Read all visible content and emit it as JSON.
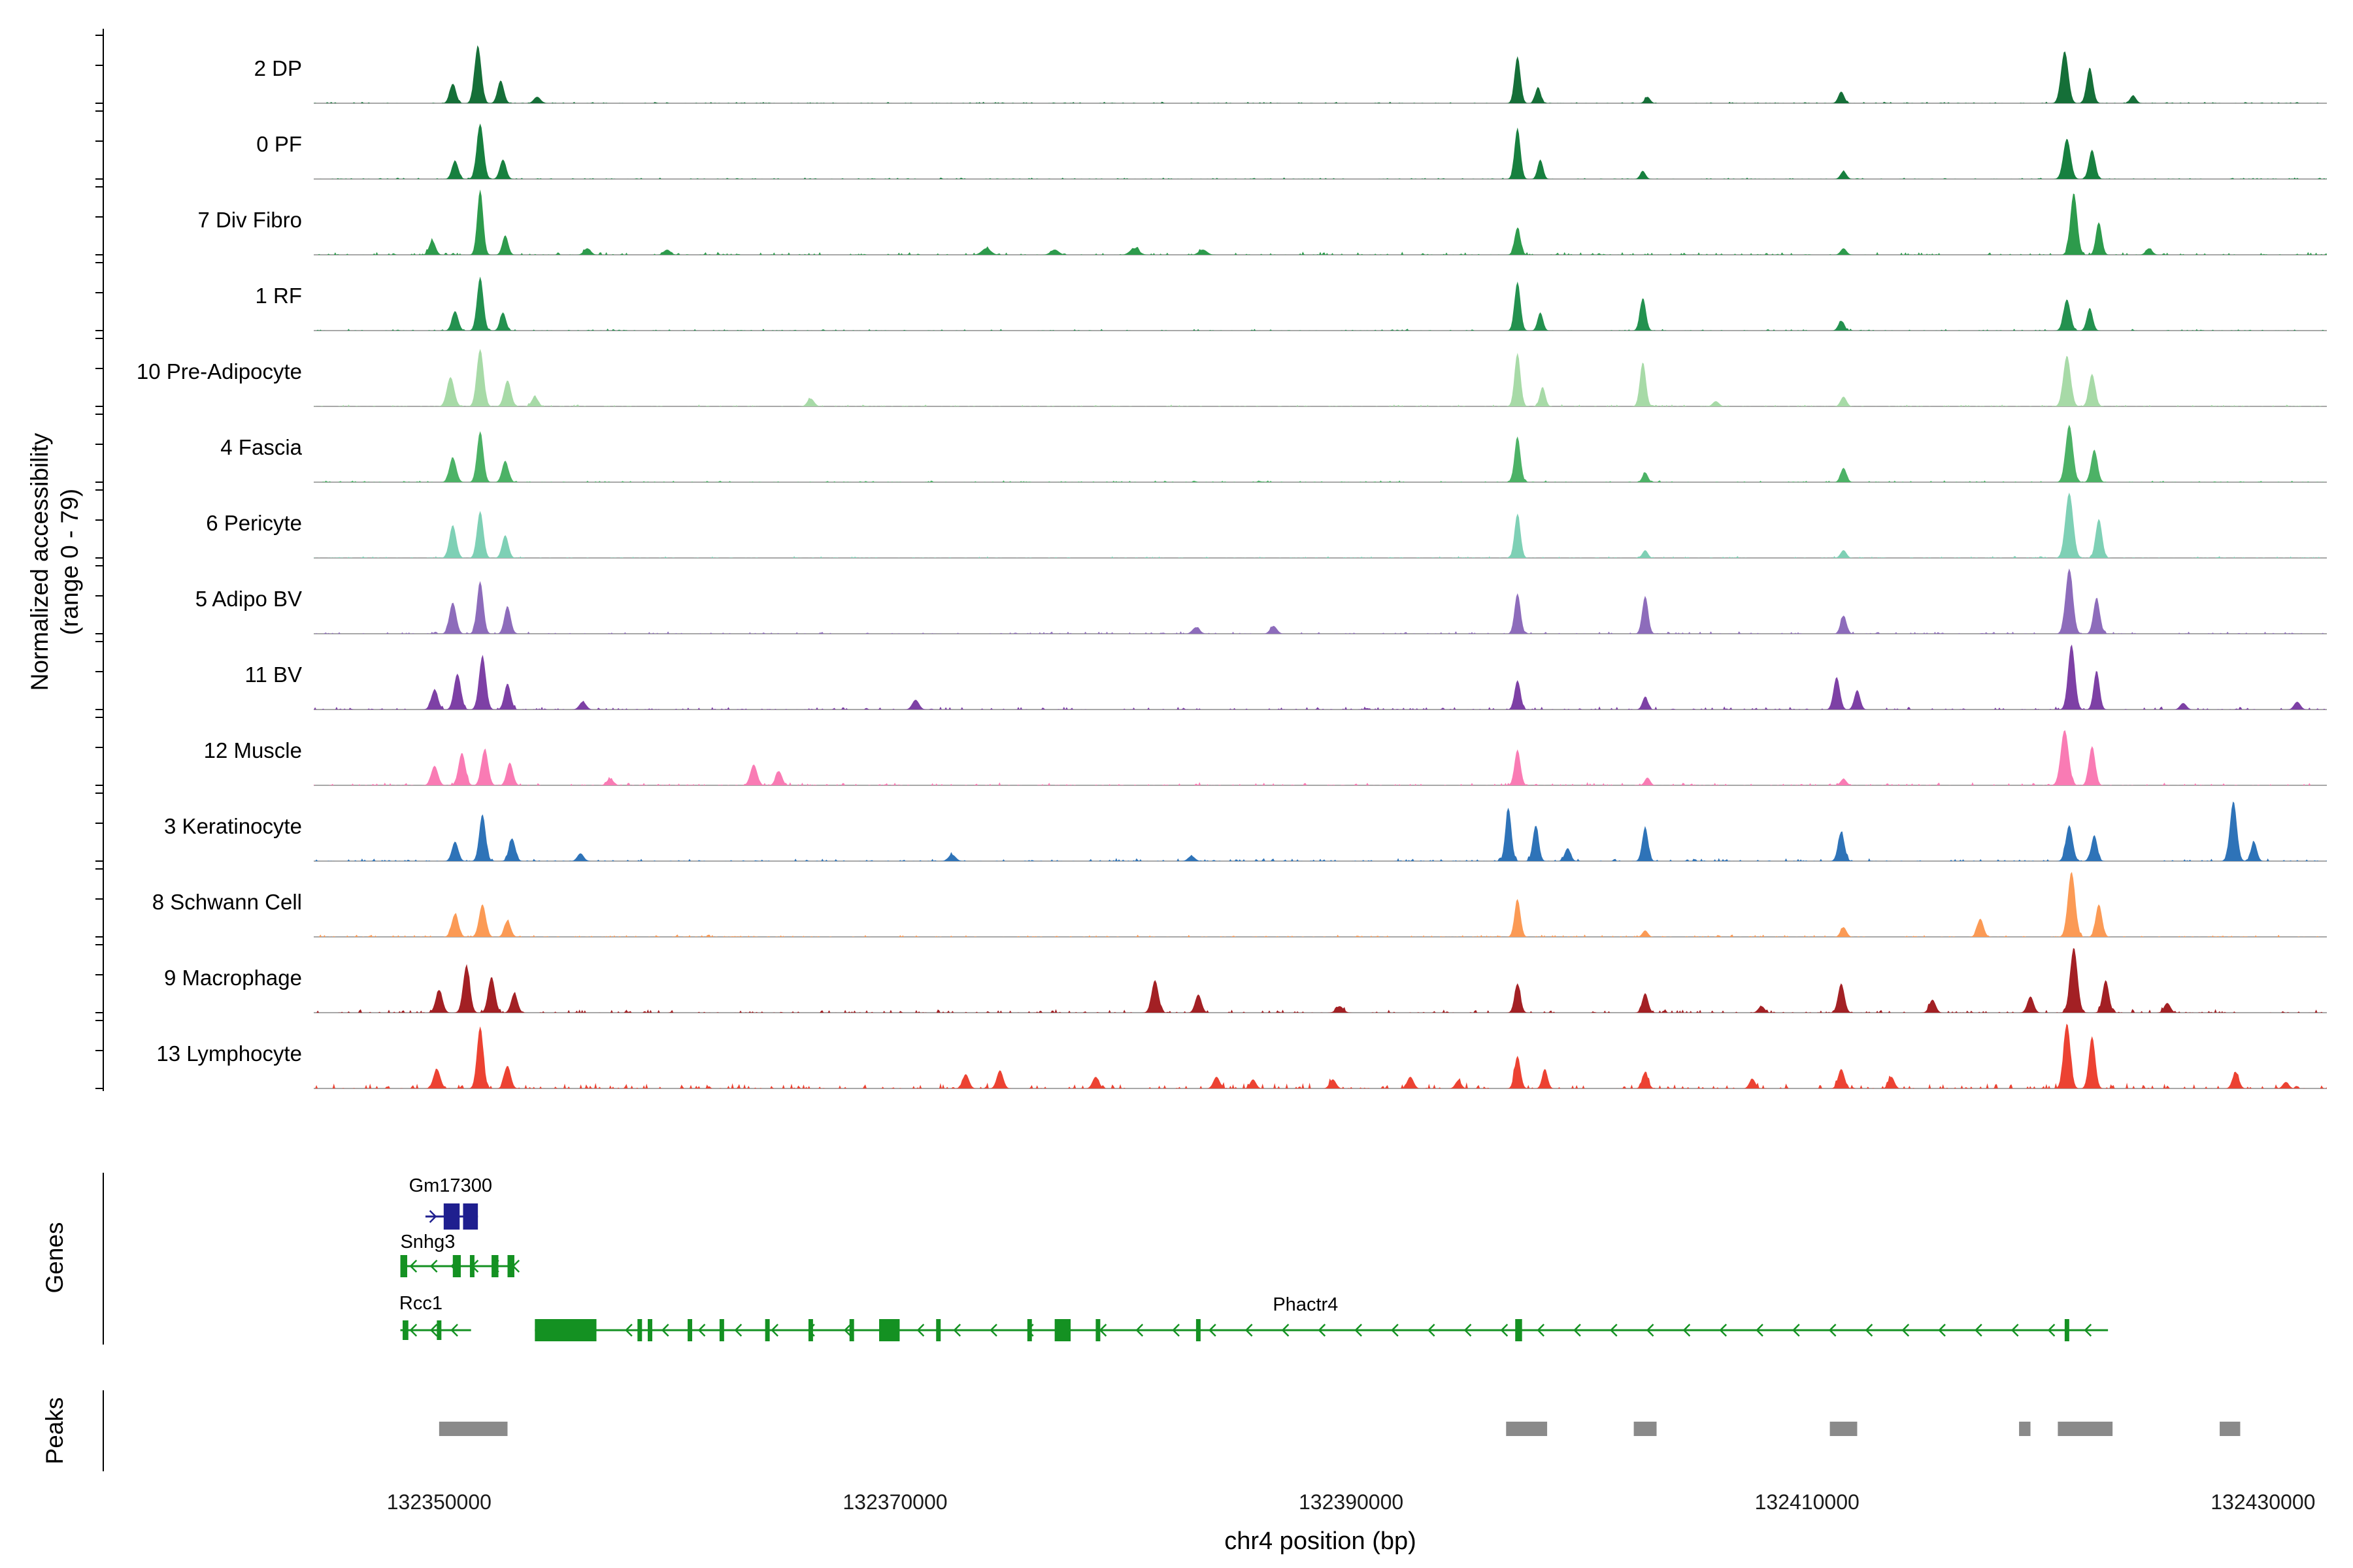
{
  "chart_data": {
    "type": "area",
    "subtype": "genome-accessibility-tracks",
    "x_domain": [
      132344500,
      132432800
    ],
    "x_axis": {
      "title": "chr4 position (bp)",
      "ticks": [
        132350000,
        132370000,
        132390000,
        132410000,
        132430000
      ]
    },
    "y_axis": {
      "label_line1": "Normalized accessibility",
      "label_line2": "(range 0 - 79)",
      "range": [
        0,
        79
      ]
    },
    "sections": {
      "genes_label": "Genes",
      "peaks_label": "Peaks"
    },
    "tracks": [
      {
        "name": "2 DP",
        "color": "#156f38",
        "noise": 0.025,
        "peaks": [
          [
            132350600,
            0.3,
            140
          ],
          [
            132351700,
            0.88,
            150
          ],
          [
            132352700,
            0.35,
            140
          ],
          [
            132354300,
            0.1,
            150
          ],
          [
            132397300,
            0.72,
            130
          ],
          [
            132398200,
            0.25,
            120
          ],
          [
            132403000,
            0.1,
            120
          ],
          [
            132411500,
            0.18,
            130
          ],
          [
            132421300,
            0.8,
            160
          ],
          [
            132422400,
            0.55,
            140
          ],
          [
            132424300,
            0.12,
            130
          ]
        ]
      },
      {
        "name": "0 PF",
        "color": "#17803f",
        "noise": 0.025,
        "peaks": [
          [
            132350700,
            0.28,
            140
          ],
          [
            132351800,
            0.85,
            150
          ],
          [
            132352800,
            0.3,
            140
          ],
          [
            132397300,
            0.78,
            130
          ],
          [
            132398300,
            0.3,
            120
          ],
          [
            132402800,
            0.12,
            120
          ],
          [
            132411600,
            0.12,
            130
          ],
          [
            132421400,
            0.62,
            160
          ],
          [
            132422500,
            0.45,
            140
          ]
        ]
      },
      {
        "name": "7 Div Fibro",
        "color": "#2d9b4c",
        "noise": 0.05,
        "peaks": [
          [
            132349700,
            0.22,
            140
          ],
          [
            132351800,
            1.0,
            130
          ],
          [
            132352900,
            0.3,
            130
          ],
          [
            132356500,
            0.1,
            150
          ],
          [
            132360000,
            0.08,
            150
          ],
          [
            132374000,
            0.1,
            200
          ],
          [
            132377000,
            0.08,
            180
          ],
          [
            132380500,
            0.1,
            200
          ],
          [
            132383500,
            0.08,
            180
          ],
          [
            132397300,
            0.42,
            130
          ],
          [
            132411600,
            0.1,
            130
          ],
          [
            132421700,
            0.95,
            150
          ],
          [
            132422800,
            0.5,
            130
          ],
          [
            132425000,
            0.1,
            140
          ]
        ]
      },
      {
        "name": "1 RF",
        "color": "#23914f",
        "noise": 0.03,
        "peaks": [
          [
            132350700,
            0.3,
            140
          ],
          [
            132351800,
            0.82,
            140
          ],
          [
            132352800,
            0.28,
            130
          ],
          [
            132397300,
            0.75,
            130
          ],
          [
            132398300,
            0.28,
            120
          ],
          [
            132402800,
            0.5,
            130
          ],
          [
            132411500,
            0.15,
            130
          ],
          [
            132421400,
            0.48,
            150
          ],
          [
            132422400,
            0.35,
            130
          ]
        ]
      },
      {
        "name": "10 Pre-Adipocyte",
        "color": "#a7daa7",
        "noise": 0.035,
        "peaks": [
          [
            132350500,
            0.45,
            160
          ],
          [
            132351800,
            0.88,
            150
          ],
          [
            132353000,
            0.4,
            150
          ],
          [
            132354200,
            0.15,
            140
          ],
          [
            132366300,
            0.12,
            150
          ],
          [
            132397300,
            0.82,
            130
          ],
          [
            132398400,
            0.3,
            120
          ],
          [
            132402800,
            0.68,
            130
          ],
          [
            132406000,
            0.08,
            140
          ],
          [
            132411600,
            0.15,
            130
          ],
          [
            132421400,
            0.78,
            160
          ],
          [
            132422500,
            0.5,
            140
          ]
        ]
      },
      {
        "name": "4 Fascia",
        "color": "#4cb266",
        "noise": 0.03,
        "peaks": [
          [
            132350600,
            0.38,
            150
          ],
          [
            132351800,
            0.78,
            140
          ],
          [
            132352900,
            0.33,
            140
          ],
          [
            132397300,
            0.7,
            130
          ],
          [
            132402900,
            0.15,
            120
          ],
          [
            132411600,
            0.22,
            130
          ],
          [
            132421500,
            0.88,
            160
          ],
          [
            132422600,
            0.5,
            140
          ]
        ]
      },
      {
        "name": "6 Pericyte",
        "color": "#7ed0b5",
        "noise": 0.03,
        "peaks": [
          [
            132350600,
            0.5,
            150
          ],
          [
            132351800,
            0.72,
            140
          ],
          [
            132352900,
            0.35,
            140
          ],
          [
            132397300,
            0.68,
            130
          ],
          [
            132402900,
            0.12,
            120
          ],
          [
            132411600,
            0.12,
            130
          ],
          [
            132421500,
            1.0,
            170
          ],
          [
            132422800,
            0.6,
            140
          ]
        ]
      },
      {
        "name": "5 Adipo BV",
        "color": "#8d6cbb",
        "noise": 0.04,
        "peaks": [
          [
            132350600,
            0.48,
            150
          ],
          [
            132351800,
            0.8,
            140
          ],
          [
            132353000,
            0.42,
            140
          ],
          [
            132383200,
            0.1,
            160
          ],
          [
            132386600,
            0.12,
            150
          ],
          [
            132397300,
            0.62,
            130
          ],
          [
            132402900,
            0.58,
            130
          ],
          [
            132411600,
            0.28,
            130
          ],
          [
            132421500,
            1.0,
            160
          ],
          [
            132422700,
            0.55,
            140
          ]
        ]
      },
      {
        "name": "11 BV",
        "color": "#7d40a5",
        "noise": 0.05,
        "peaks": [
          [
            132349800,
            0.3,
            150
          ],
          [
            132350800,
            0.55,
            150
          ],
          [
            132351900,
            0.82,
            150
          ],
          [
            132353000,
            0.4,
            140
          ],
          [
            132356300,
            0.12,
            150
          ],
          [
            132370900,
            0.15,
            150
          ],
          [
            132397300,
            0.45,
            130
          ],
          [
            132402900,
            0.2,
            120
          ],
          [
            132411300,
            0.5,
            140
          ],
          [
            132412200,
            0.3,
            130
          ],
          [
            132421600,
            1.0,
            150
          ],
          [
            132422700,
            0.6,
            130
          ],
          [
            132426500,
            0.1,
            140
          ],
          [
            132431500,
            0.12,
            140
          ]
        ]
      },
      {
        "name": "12 Muscle",
        "color": "#f97bb4",
        "noise": 0.05,
        "peaks": [
          [
            132349800,
            0.3,
            150
          ],
          [
            132351000,
            0.5,
            150
          ],
          [
            132352000,
            0.55,
            150
          ],
          [
            132353100,
            0.35,
            140
          ],
          [
            132357500,
            0.1,
            150
          ],
          [
            132363800,
            0.32,
            150
          ],
          [
            132364900,
            0.22,
            140
          ],
          [
            132397300,
            0.55,
            130
          ],
          [
            132403000,
            0.12,
            120
          ],
          [
            132411600,
            0.1,
            130
          ],
          [
            132421300,
            0.85,
            170
          ],
          [
            132422500,
            0.6,
            140
          ]
        ]
      },
      {
        "name": "3 Keratinocyte",
        "color": "#2e73b8",
        "noise": 0.05,
        "peaks": [
          [
            132350700,
            0.3,
            140
          ],
          [
            132351900,
            0.72,
            140
          ],
          [
            132353200,
            0.35,
            140
          ],
          [
            132356200,
            0.12,
            140
          ],
          [
            132372500,
            0.1,
            160
          ],
          [
            132383000,
            0.08,
            150
          ],
          [
            132396900,
            0.82,
            130
          ],
          [
            132398100,
            0.55,
            130
          ],
          [
            132399500,
            0.2,
            130
          ],
          [
            132402900,
            0.52,
            130
          ],
          [
            132411500,
            0.45,
            140
          ],
          [
            132421500,
            0.55,
            150
          ],
          [
            132422600,
            0.4,
            130
          ],
          [
            132428700,
            0.92,
            150
          ],
          [
            132429600,
            0.3,
            130
          ]
        ]
      },
      {
        "name": "8 Schwann Cell",
        "color": "#fb9a55",
        "noise": 0.04,
        "peaks": [
          [
            132350700,
            0.35,
            150
          ],
          [
            132351900,
            0.5,
            150
          ],
          [
            132353000,
            0.25,
            140
          ],
          [
            132397300,
            0.58,
            130
          ],
          [
            132402900,
            0.1,
            120
          ],
          [
            132411600,
            0.15,
            130
          ],
          [
            132417600,
            0.28,
            140
          ],
          [
            132421600,
            1.0,
            160
          ],
          [
            132422800,
            0.5,
            140
          ]
        ]
      },
      {
        "name": "9 Macrophage",
        "color": "#a32024",
        "noise": 0.06,
        "peaks": [
          [
            132350000,
            0.35,
            150
          ],
          [
            132351200,
            0.72,
            150
          ],
          [
            132352300,
            0.55,
            150
          ],
          [
            132353300,
            0.3,
            140
          ],
          [
            132381400,
            0.5,
            150
          ],
          [
            132383300,
            0.28,
            140
          ],
          [
            132389500,
            0.1,
            160
          ],
          [
            132397300,
            0.45,
            130
          ],
          [
            132402900,
            0.3,
            130
          ],
          [
            132408000,
            0.1,
            140
          ],
          [
            132411500,
            0.45,
            140
          ],
          [
            132415500,
            0.2,
            140
          ],
          [
            132419800,
            0.25,
            140
          ],
          [
            132421700,
            1.0,
            160
          ],
          [
            132423100,
            0.5,
            140
          ],
          [
            132425800,
            0.15,
            140
          ]
        ]
      },
      {
        "name": "13 Lymphocyte",
        "color": "#ec4232",
        "noise": 0.1,
        "peaks": [
          [
            132349900,
            0.3,
            150
          ],
          [
            132351800,
            0.95,
            140
          ],
          [
            132353000,
            0.35,
            140
          ],
          [
            132373100,
            0.22,
            140
          ],
          [
            132374600,
            0.28,
            140
          ],
          [
            132378800,
            0.18,
            140
          ],
          [
            132384100,
            0.18,
            140
          ],
          [
            132385700,
            0.14,
            130
          ],
          [
            132389200,
            0.14,
            140
          ],
          [
            132392600,
            0.18,
            140
          ],
          [
            132394700,
            0.12,
            130
          ],
          [
            132397300,
            0.5,
            130
          ],
          [
            132398500,
            0.3,
            120
          ],
          [
            132402900,
            0.25,
            130
          ],
          [
            132407600,
            0.15,
            130
          ],
          [
            132411500,
            0.3,
            140
          ],
          [
            132413700,
            0.18,
            130
          ],
          [
            132421400,
            1.0,
            150
          ],
          [
            132422500,
            0.8,
            140
          ],
          [
            132428800,
            0.25,
            140
          ],
          [
            132431000,
            0.1,
            130
          ]
        ]
      }
    ],
    "genes": [
      {
        "name": "Gm17300",
        "color": "#1f1f8f",
        "strand": "+",
        "row": 0,
        "start": 132349400,
        "end": 132351700,
        "label_bp": 132350500,
        "label_dy": -38,
        "arrow_step": 900,
        "exon_h": 40,
        "exons": [
          [
            132350200,
            132350900
          ],
          [
            132351050,
            132351700
          ]
        ]
      },
      {
        "name": "Snhg3",
        "color": "#149122",
        "strand": "-",
        "row": 1,
        "start": 132348300,
        "end": 132353300,
        "label_bp": 132349500,
        "label_dy": -28,
        "arrow_step": 900,
        "exon_h": 34,
        "exons": [
          [
            132348300,
            132348600
          ],
          [
            132350600,
            132350950
          ],
          [
            132351350,
            132351550
          ],
          [
            132352300,
            132352600
          ],
          [
            132353000,
            132353300
          ]
        ]
      },
      {
        "name": "Rcc1",
        "color": "#149122",
        "strand": "-",
        "row": 2,
        "start": 132348300,
        "end": 132351400,
        "label_bp": 132349200,
        "label_dy": -32,
        "arrow_step": 900,
        "exon_h": 30,
        "exons": [
          [
            132348400,
            132348650
          ],
          [
            132349900,
            132350100
          ]
        ]
      },
      {
        "name": "Phactr4",
        "color": "#149122",
        "strand": "-",
        "row": 2,
        "start": 132354200,
        "end": 132423200,
        "label_bp": 132388000,
        "label_dy": -30,
        "arrow_step": 1600,
        "exon_h": 34,
        "exons": [
          [
            132354200,
            132356900
          ],
          [
            132358700,
            132358900
          ],
          [
            132359150,
            132359350
          ],
          [
            132360900,
            132361100
          ],
          [
            132362300,
            132362500
          ],
          [
            132364300,
            132364500
          ],
          [
            132366200,
            132366400
          ],
          [
            132368000,
            132368200
          ],
          [
            132369300,
            132370200
          ],
          [
            132371800,
            132372000
          ],
          [
            132375800,
            132376000
          ],
          [
            132377000,
            132377700
          ],
          [
            132378800,
            132379000
          ],
          [
            132383200,
            132383400
          ],
          [
            132397200,
            132397500
          ],
          [
            132421300,
            132421500
          ]
        ]
      }
    ],
    "peak_regions": [
      [
        132350000,
        132353000
      ],
      [
        132396800,
        132398600
      ],
      [
        132402400,
        132403400
      ],
      [
        132411000,
        132412200
      ],
      [
        132419300,
        132419800
      ],
      [
        132421000,
        132423400
      ],
      [
        132428100,
        132429000
      ]
    ],
    "peak_color": "#8a8a8a"
  }
}
